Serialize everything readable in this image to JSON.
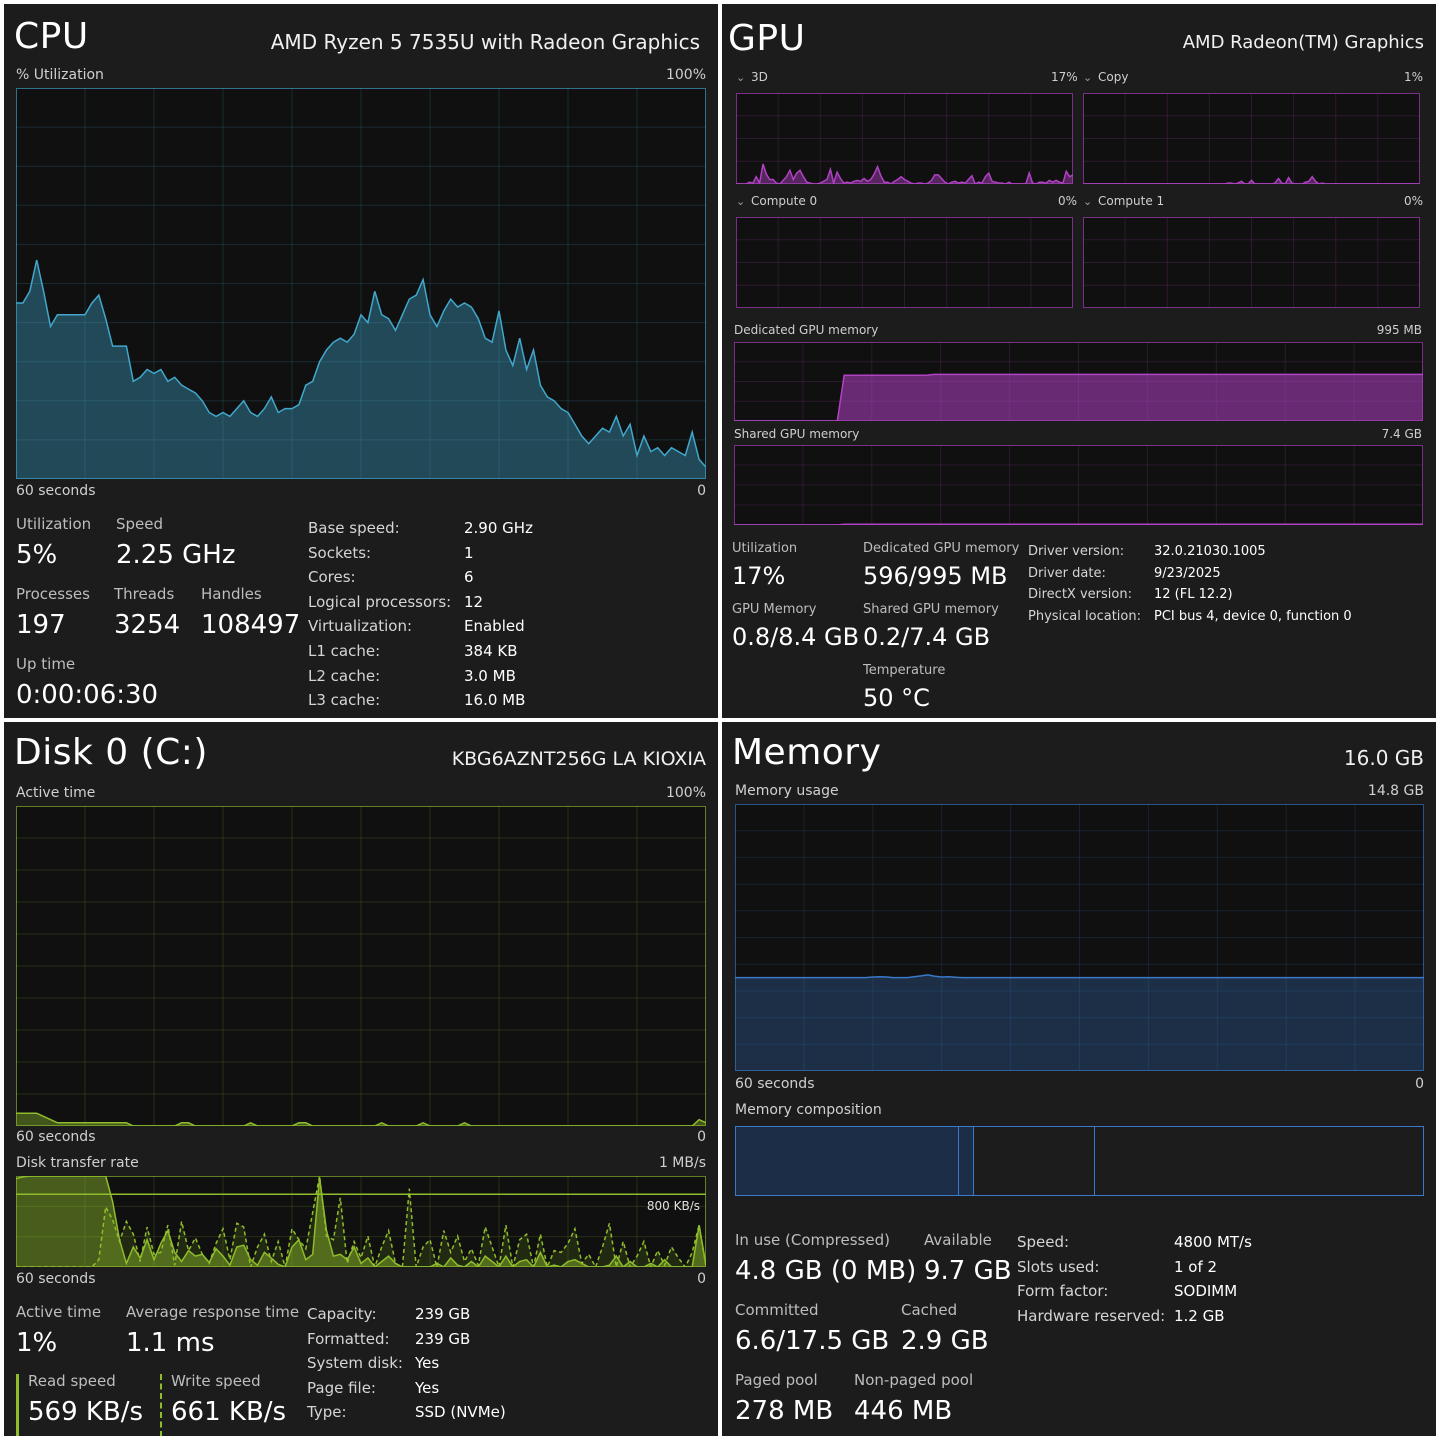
{
  "colors": {
    "cpu": "#41a7cc",
    "gpu": "#b042c4",
    "disk": "#8fbd2b",
    "memory": "#3a78c8"
  },
  "cpu": {
    "title": "CPU",
    "model": "AMD Ryzen 5 7535U with Radeon Graphics",
    "graph_label": "% Utilization",
    "graph_max": "100%",
    "graph_time": "60 seconds",
    "graph_min": "0",
    "utilization_label": "Utilization",
    "utilization_value": "5%",
    "speed_label": "Speed",
    "speed_value": "2.25 GHz",
    "processes_label": "Processes",
    "processes_value": "197",
    "threads_label": "Threads",
    "threads_value": "3254",
    "handles_label": "Handles",
    "handles_value": "108497",
    "uptime_label": "Up time",
    "uptime_value": "0:00:06:30",
    "specs": [
      {
        "k": "Base speed:",
        "v": "2.90 GHz"
      },
      {
        "k": "Sockets:",
        "v": "1"
      },
      {
        "k": "Cores:",
        "v": "6"
      },
      {
        "k": "Logical processors:",
        "v": "12"
      },
      {
        "k": "Virtualization:",
        "v": "Enabled"
      },
      {
        "k": "L1 cache:",
        "v": "384 KB"
      },
      {
        "k": "L2 cache:",
        "v": "3.0 MB"
      },
      {
        "k": "L3 cache:",
        "v": "16.0 MB"
      }
    ],
    "history": [
      45,
      45,
      48,
      56,
      48,
      39,
      42,
      42,
      42,
      42,
      42,
      45,
      47,
      41,
      34,
      34,
      34,
      25,
      26,
      28,
      27,
      28,
      25,
      26,
      24,
      23,
      22,
      20,
      17,
      16,
      17,
      16,
      18,
      20,
      17,
      16,
      18,
      21,
      17,
      18,
      18,
      19,
      24,
      25,
      30,
      33,
      35,
      36,
      35,
      37,
      42,
      40,
      48,
      42,
      41,
      38,
      42,
      46,
      47,
      51,
      42,
      39,
      43,
      46,
      44,
      45,
      44,
      41,
      36,
      35,
      43,
      33,
      29,
      36,
      28,
      33,
      24,
      21,
      20,
      18,
      17,
      14,
      11,
      9,
      11,
      13,
      12,
      16,
      11,
      14,
      6,
      11,
      7,
      8,
      6,
      8,
      7,
      6,
      12,
      5,
      3
    ]
  },
  "gpu": {
    "title": "GPU",
    "model": "AMD Radeon(TM) Graphics",
    "engines": [
      {
        "name": "3D",
        "pct": "17%",
        "history": [
          0,
          0,
          0,
          0,
          2,
          1,
          8,
          1,
          22,
          11,
          5,
          5,
          1,
          0,
          4,
          8,
          15,
          5,
          12,
          15,
          8,
          2,
          1,
          0,
          0,
          1,
          3,
          5,
          16,
          1,
          13,
          6,
          1,
          2,
          1,
          3,
          4,
          3,
          6,
          3,
          5,
          11,
          19,
          9,
          2,
          2,
          0,
          3,
          5,
          8,
          5,
          3,
          1,
          0,
          1,
          1,
          0,
          1,
          4,
          10,
          10,
          6,
          2,
          0,
          2,
          3,
          1,
          2,
          1,
          5,
          9,
          0,
          2,
          1,
          8,
          12,
          3,
          2,
          1,
          1,
          0,
          2,
          0,
          0,
          0,
          0,
          0,
          12,
          1,
          0,
          2,
          2,
          1,
          4,
          2,
          4,
          2,
          1,
          14,
          8,
          10
        ]
      },
      {
        "name": "Copy",
        "pct": "1%",
        "history": [
          0,
          0,
          0,
          0,
          0,
          0,
          0,
          0,
          0,
          0,
          0,
          0,
          0,
          0,
          0,
          0,
          0,
          0,
          0,
          0,
          0,
          0,
          0,
          0,
          0,
          0,
          0,
          0,
          0,
          0,
          0,
          0,
          0,
          0,
          0,
          0,
          0,
          0,
          0,
          0,
          0,
          0,
          0,
          1,
          1,
          0,
          1,
          3,
          0,
          0,
          4,
          0,
          0,
          0,
          0,
          0,
          0,
          1,
          6,
          1,
          0,
          7,
          1,
          0,
          0,
          0,
          2,
          3,
          8,
          3,
          0,
          1,
          0,
          0,
          0,
          0,
          0,
          0,
          0,
          0,
          0,
          0,
          0,
          0,
          0,
          0,
          0,
          0,
          0,
          0,
          0,
          0,
          0,
          0,
          0,
          0,
          0,
          0,
          0,
          0,
          0
        ]
      },
      {
        "name": "Compute 0",
        "pct": "0%",
        "history": []
      },
      {
        "name": "Compute 1",
        "pct": "0%",
        "history": []
      }
    ],
    "dedicated_label": "Dedicated GPU memory",
    "dedicated_max": "995 MB",
    "dedicated_history": [
      0,
      0,
      0,
      0,
      0,
      0,
      0,
      0,
      0,
      0,
      0,
      0,
      0,
      0,
      0,
      0,
      58,
      58,
      58,
      58,
      58,
      58,
      58,
      58,
      58,
      58,
      58,
      58,
      58,
      59,
      59,
      59,
      59,
      59,
      59,
      59,
      59,
      59,
      59,
      59,
      59,
      59,
      59,
      59,
      59,
      59,
      59,
      59,
      59,
      59,
      59,
      59,
      59,
      59,
      59,
      59,
      59,
      59,
      59,
      59,
      59,
      59,
      59,
      59,
      59,
      59,
      59,
      59,
      59,
      59,
      59,
      59,
      59,
      59,
      59,
      59,
      59,
      59,
      59,
      59,
      59,
      59,
      59,
      59,
      59,
      59,
      59,
      59,
      59,
      59,
      59,
      59,
      59,
      59,
      59,
      59,
      59,
      59,
      59,
      59,
      59
    ],
    "shared_label": "Shared GPU memory",
    "shared_max": "7.4 GB",
    "shared_history": [
      0,
      0,
      0,
      0,
      0,
      0,
      0,
      0,
      0,
      0,
      0,
      0,
      0,
      0,
      0,
      0,
      1,
      1,
      1,
      1,
      1,
      1,
      1,
      1,
      1,
      1,
      1,
      1,
      1,
      1,
      1,
      1,
      1,
      1,
      1,
      1,
      1,
      1,
      1,
      1,
      1,
      1,
      1,
      1,
      1,
      1,
      1,
      1,
      1,
      1,
      1,
      1,
      1,
      1,
      1,
      1,
      1,
      1,
      1,
      1,
      1,
      1,
      1,
      1,
      1,
      1,
      1,
      1,
      1,
      1,
      1,
      1,
      1,
      1,
      1,
      1,
      1,
      1,
      1,
      1,
      1,
      1,
      1,
      1,
      1,
      1,
      1,
      1,
      1,
      1,
      1,
      1,
      1,
      1,
      1,
      1,
      1,
      1,
      1,
      1,
      1
    ],
    "utilization_label": "Utilization",
    "utilization_value": "17%",
    "ded_mem_label": "Dedicated GPU memory",
    "ded_mem_value": "596/995 MB",
    "gpu_mem_label": "GPU Memory",
    "gpu_mem_value": "0.8/8.4 GB",
    "shared_mem_label": "Shared GPU memory",
    "shared_mem_value": "0.2/7.4 GB",
    "temp_label": "Temperature",
    "temp_value": "50 °C",
    "specs": [
      {
        "k": "Driver version:",
        "v": "32.0.21030.1005"
      },
      {
        "k": "Driver date:",
        "v": "9/23/2025"
      },
      {
        "k": "DirectX version:",
        "v": "12 (FL 12.2)"
      },
      {
        "k": "Physical location:",
        "v": "PCI bus 4, device 0, function 0"
      }
    ]
  },
  "disk": {
    "title": "Disk 0 (C:)",
    "model": "KBG6AZNT256G LA KIOXIA",
    "active_label": "Active time",
    "active_max": "100%",
    "active_time": "60 seconds",
    "active_min": "0",
    "active_history": [
      4,
      4,
      4,
      4,
      3,
      2,
      1,
      1,
      1,
      1,
      1,
      1,
      1,
      1,
      1,
      1,
      1,
      0,
      0,
      0,
      0,
      0,
      0,
      0,
      1,
      1,
      0,
      0,
      0,
      0,
      0,
      0,
      0,
      0,
      1,
      0,
      0,
      0,
      0,
      0,
      0,
      1,
      1,
      0,
      0,
      0,
      0,
      0,
      0,
      0,
      0,
      0,
      0,
      1,
      0,
      0,
      0,
      0,
      0,
      1,
      0,
      0,
      0,
      0,
      0,
      1,
      0,
      0,
      0,
      0,
      0,
      0,
      0,
      0,
      0,
      0,
      0,
      0,
      0,
      0,
      0,
      0,
      0,
      0,
      0,
      0,
      0,
      0,
      0,
      0,
      0,
      0,
      0,
      0,
      0,
      0,
      0,
      0,
      0,
      2,
      1
    ],
    "transfer_label": "Disk transfer rate",
    "transfer_max": "1 MB/s",
    "transfer_mark": "800 KB/s",
    "transfer_time": "60 seconds",
    "transfer_min": "0",
    "transfer_read": [
      97,
      99,
      100,
      100,
      100,
      100,
      100,
      100,
      100,
      100,
      100,
      100,
      100,
      100,
      72,
      30,
      4,
      22,
      10,
      30,
      8,
      26,
      40,
      16,
      6,
      18,
      12,
      14,
      5,
      20,
      12,
      2,
      22,
      24,
      8,
      2,
      16,
      10,
      3,
      0,
      22,
      30,
      8,
      14,
      98,
      40,
      12,
      14,
      8,
      22,
      4,
      10,
      0,
      6,
      12,
      4,
      0,
      0,
      0,
      0,
      0,
      4,
      0,
      10,
      2,
      0,
      6,
      0,
      12,
      6,
      0,
      12,
      0,
      6,
      8,
      0,
      16,
      0,
      2,
      0,
      6,
      8,
      4,
      0,
      0,
      0,
      2,
      12,
      0,
      6,
      0,
      0,
      4,
      0,
      8,
      0,
      0,
      0,
      0,
      46,
      2
    ],
    "transfer_write": [
      0,
      0,
      0,
      0,
      0,
      0,
      0,
      0,
      0,
      0,
      0,
      0,
      8,
      66,
      52,
      28,
      50,
      36,
      6,
      44,
      14,
      16,
      46,
      2,
      50,
      18,
      32,
      14,
      4,
      26,
      42,
      8,
      48,
      44,
      0,
      22,
      36,
      6,
      28,
      0,
      42,
      30,
      20,
      60,
      100,
      34,
      30,
      76,
      4,
      28,
      10,
      34,
      0,
      22,
      40,
      4,
      0,
      86,
      0,
      22,
      30,
      0,
      40,
      16,
      34,
      6,
      20,
      2,
      44,
      22,
      0,
      46,
      0,
      30,
      36,
      0,
      36,
      0,
      18,
      16,
      26,
      42,
      4,
      14,
      0,
      22,
      48,
      0,
      28,
      0,
      12,
      28,
      0,
      18,
      2,
      22,
      10,
      0,
      16,
      46,
      0
    ],
    "active_time_label": "Active time",
    "active_time_value": "1%",
    "resp_label": "Average response time",
    "resp_value": "1.1 ms",
    "read_label": "Read speed",
    "read_value": "569 KB/s",
    "write_label": "Write speed",
    "write_value": "661 KB/s",
    "specs": [
      {
        "k": "Capacity:",
        "v": "239 GB"
      },
      {
        "k": "Formatted:",
        "v": "239 GB"
      },
      {
        "k": "System disk:",
        "v": "Yes"
      },
      {
        "k": "Page file:",
        "v": "Yes"
      },
      {
        "k": "Type:",
        "v": "SSD (NVMe)"
      }
    ]
  },
  "memory": {
    "title": "Memory",
    "total": "16.0 GB",
    "usage_label": "Memory usage",
    "usage_max": "14.8 GB",
    "usage_time": "60 seconds",
    "usage_min": "0",
    "usage_history": [
      35,
      35,
      35,
      35,
      35,
      35,
      35,
      35,
      35,
      35,
      35,
      35,
      35,
      35,
      35,
      35,
      35,
      35,
      35,
      35,
      35.2,
      35.3,
      35.2,
      35,
      35,
      35,
      35.3,
      35.6,
      36,
      35.5,
      35.2,
      35.3,
      35.1,
      35,
      35,
      35,
      35,
      35,
      35,
      35,
      35,
      35,
      35,
      35,
      35,
      35,
      35,
      35,
      35,
      35,
      35,
      35,
      35,
      35,
      35,
      35,
      35,
      35,
      35,
      35,
      35,
      35,
      35,
      35,
      35,
      35,
      35,
      35,
      35,
      35,
      35,
      35,
      35,
      35,
      35,
      35,
      35,
      35,
      35,
      35,
      35,
      35,
      35,
      35,
      35,
      35,
      35,
      35,
      35,
      35,
      35,
      35,
      35,
      35,
      35,
      35,
      35,
      35,
      35,
      35,
      35
    ],
    "composition_label": "Memory composition",
    "composition": {
      "in_use": 32.5,
      "modified": 2.2,
      "standby": 17.5,
      "free": 47.8
    },
    "in_use_label": "In use (Compressed)",
    "in_use_value": "4.8 GB (0 MB)",
    "available_label": "Available",
    "available_value": "9.7 GB",
    "committed_label": "Committed",
    "committed_value": "6.6/17.5 GB",
    "cached_label": "Cached",
    "cached_value": "2.9 GB",
    "paged_label": "Paged pool",
    "paged_value": "278 MB",
    "nonpaged_label": "Non-paged pool",
    "nonpaged_value": "446 MB",
    "specs": [
      {
        "k": "Speed:",
        "v": "4800 MT/s"
      },
      {
        "k": "Slots used:",
        "v": "1 of 2"
      },
      {
        "k": "Form factor:",
        "v": "SODIMM"
      },
      {
        "k": "Hardware reserved:",
        "v": "1.2 GB"
      }
    ]
  }
}
